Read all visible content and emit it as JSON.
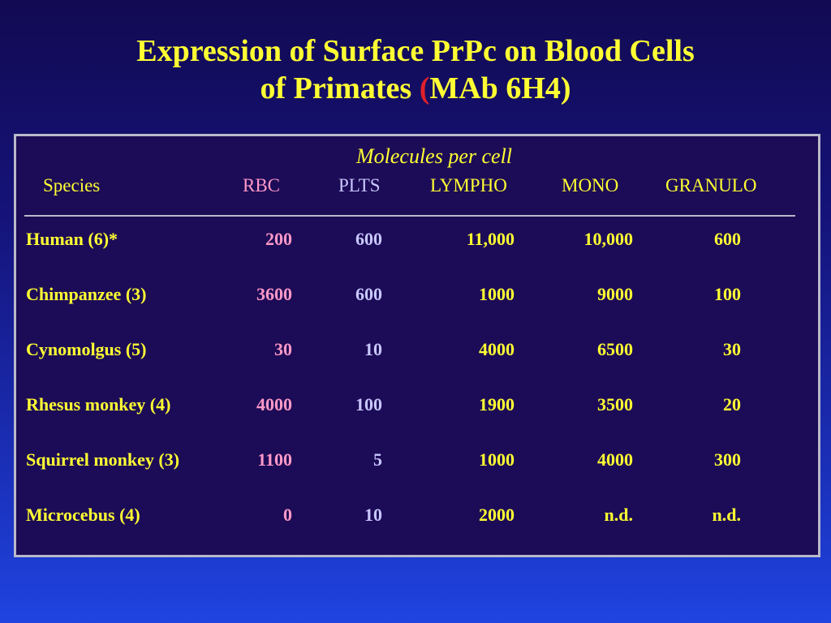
{
  "title": {
    "line1": "Expression of Surface PrPc on Blood Cells",
    "line2_pre": "of Primates ",
    "line2_paren": "(",
    "line2_post": "MAb 6H4)"
  },
  "table": {
    "subheading": "Molecules per cell",
    "headers": [
      "Species",
      "RBC",
      "PLTS",
      "LYMPHO",
      "MONO",
      "GRANULO"
    ],
    "rows": [
      [
        "Human (6)*",
        "200",
        "600",
        "11,000",
        "10,000",
        "600"
      ],
      [
        "Chimpanzee (3)",
        "3600",
        "600",
        "1000",
        "9000",
        "100"
      ],
      [
        "Cynomolgus (5)",
        "30",
        "10",
        "4000",
        "6500",
        "30"
      ],
      [
        "Rhesus monkey (4)",
        "4000",
        "100",
        "1900",
        "3500",
        "20"
      ],
      [
        "Squirrel monkey (3)",
        "1100",
        "5",
        "1000",
        "4000",
        "300"
      ],
      [
        "Microcebus (4)",
        "0",
        "10",
        "2000",
        "n.d.",
        "n.d."
      ]
    ]
  },
  "colors": {
    "title": "#ffff33",
    "paren": "#e0202a",
    "rbc": "#ff99c8",
    "plts": "#c8c8ff",
    "panel": "#1c0b56"
  }
}
